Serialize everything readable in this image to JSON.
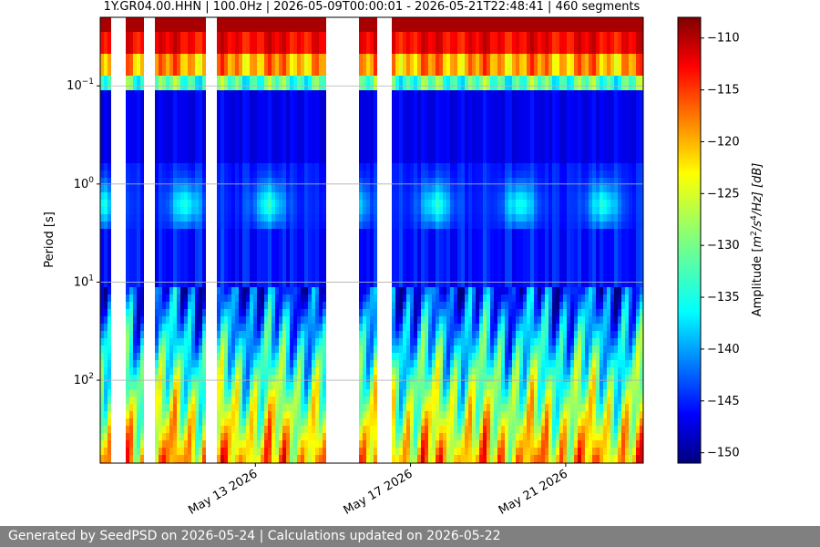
{
  "chart_data": {
    "type": "heatmap",
    "title": "1Y.GR04.00.HHN | 100.0Hz | 2026-05-09T00:00:01 - 2026-05-21T22:48:41 | 460 segments",
    "ylabel": "Period [s]",
    "y_scale": "log",
    "y_inverted": true,
    "ylim": [
      0.02,
      700
    ],
    "y_ticks": [
      {
        "value": 0.1,
        "base": "10",
        "exp": "−1"
      },
      {
        "value": 1,
        "base": "10",
        "exp": "0"
      },
      {
        "value": 10,
        "base": "10",
        "exp": "1"
      },
      {
        "value": 100,
        "base": "10",
        "exp": "2"
      }
    ],
    "x_axis": {
      "type": "date",
      "range": [
        "2026-05-09",
        "2026-05-23"
      ],
      "tick_labels": [
        "May 13 2026",
        "May 17 2026",
        "May 21 2026"
      ],
      "tick_dates": [
        "2026-05-13",
        "2026-05-17",
        "2026-05-21"
      ]
    },
    "grid": true,
    "colorbar": {
      "label_prefix": "Amplitude [",
      "label_unit": "m",
      "label_exp1": "2",
      "label_mid": "/s",
      "label_exp2": "4",
      "label_suffix": "/Hz] [dB]",
      "range": [
        -151,
        -108
      ],
      "ticks": [
        "-110",
        "-115",
        "-120",
        "-125",
        "-130",
        "-135",
        "-140",
        "-145",
        "-150"
      ],
      "colormap": "jet"
    },
    "data_gaps": [
      [
        "2026-05-09T06:00",
        "2026-05-09T16:00"
      ],
      [
        "2026-05-10T03:00",
        "2026-05-10T10:30"
      ],
      [
        "2026-05-11T18:00",
        "2026-05-12T00:00"
      ],
      [
        "2026-05-14T20:00",
        "2026-05-15T16:30"
      ],
      [
        "2026-05-16T04:00",
        "2026-05-16T12:00"
      ]
    ]
  },
  "footer": {
    "text": "Generated by SeedPSD on 2026-05-24 | Calculations updated on 2026-05-22"
  }
}
